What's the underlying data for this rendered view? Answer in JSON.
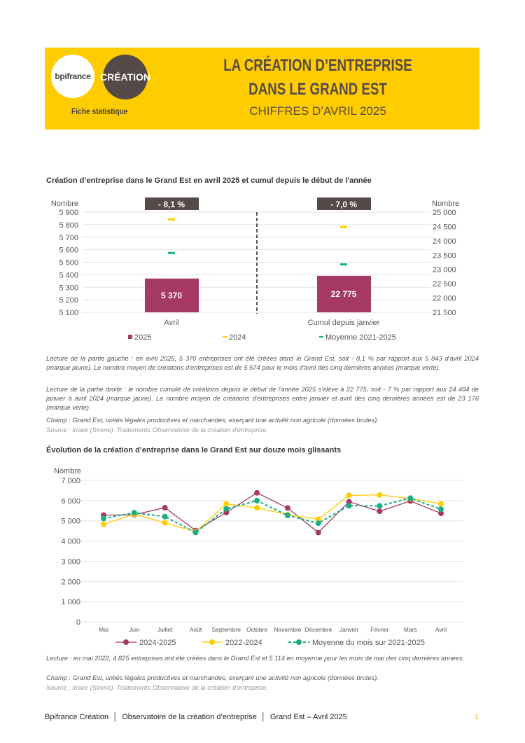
{
  "header": {
    "logo_bpi": "bpifrance",
    "logo_creation": "CRÉATION",
    "subtitle_left": "Fiche statistique",
    "title_line1": "LA CRÉATION D’ENTREPRISE",
    "title_line2": "DANS LE GRAND EST",
    "title_line3": "CHIFFRES D’AVRIL 2025",
    "brand_color": "#FFCC00"
  },
  "chart1_title": "Création d’entreprise dans le Grand Est en avril 2025 et cumul depuis le début de l'année",
  "chart1_notes": {
    "left": "Lecture de la partie gauche : en avril 2025, 5 370 entreprises ont été créées dans le Grand Est, soit - 8,1 % par rapport aux 5 843 d'avril 2024 (marque jaune). Le nombre moyen de créations d'entreprises est de 5 574 pour le mois d'avril des cinq dernières années (marque verte).",
    "right": "Lecture de la partie droite : le nombre cumulé de créations depuis le début de l'année 2025 s'élève à 22 775, soit - 7 % par rapport aux 24 484 de janvier à avril 2024 (marque jaune). Le nombre moyen de créations d'entreprises entre janvier et avril des cinq dernières années est de 23 176 (marque verte).",
    "champ": "Champ : Grand Est, unités légales productives et marchandes, exerçant une activité non agricole (données brutes).",
    "source": "Source : Insee (Sirene). Traitements Observatoire de la création d'entreprise."
  },
  "chart2_title": "Évolution de la création d’entreprise dans le Grand Est sur douze mois glissants",
  "chart2_notes": {
    "lecture": "Lecture : en mai 2022, 4 825 entreprises ont été créées dans le Grand Est et 5 114 en moyenne pour les mois de mai des cinq dernières années.",
    "champ": "Champ : Grand Est, unités légales productives et marchandes, exerçant une activité non agricole (données brutes).",
    "source": "Source : Insee (Sirene). Traitements Observatoire de la création d'entreprise."
  },
  "footer": {
    "text": "Bpifrance Création  │  Observatoire de la création d’entreprise  │  Grand Est – Avril 2025",
    "page": "1"
  },
  "chart_data": [
    {
      "type": "bar",
      "title": "Création d’entreprise dans le Grand Est en avril 2025 et cumul depuis le début de l'année",
      "categories": [
        "Avril",
        "Cumul depuis janvier"
      ],
      "ylabel_left": "Nombre",
      "ylabel_right": "Nombre",
      "ylim_left": [
        5100,
        5900
      ],
      "yticks_left": [
        "5 100",
        "5 200",
        "5 300",
        "5 400",
        "5 500",
        "5 600",
        "5 700",
        "5 800",
        "5 900"
      ],
      "ylim_right": [
        21500,
        25000
      ],
      "yticks_right": [
        "21 500",
        "22 000",
        "22 500",
        "23 000",
        "23 500",
        "24 000",
        "24 500",
        "25 000"
      ],
      "series": [
        {
          "name": "2025",
          "values": [
            5370,
            22775
          ],
          "labels": [
            "5 370",
            "22 775"
          ],
          "color": "#A63A64"
        },
        {
          "name": "2024",
          "values": [
            5843,
            24484
          ],
          "color": "#FFCC00"
        },
        {
          "name": "Moyenne 2021-2025",
          "values": [
            5574,
            23176
          ],
          "color": "#1AAE86"
        }
      ],
      "badges": [
        "- 8,1 %",
        "- 7,0 %"
      ],
      "legend_position": "bottom"
    },
    {
      "type": "line",
      "title": "Évolution de la création d’entreprise dans le Grand Est sur douze mois glissants",
      "ylabel": "Nombre",
      "ylim": [
        0,
        7000
      ],
      "yticks": [
        "0",
        "1 000",
        "2 000",
        "3 000",
        "4 000",
        "5 000",
        "6 000",
        "7 000"
      ],
      "categories": [
        "Mai",
        "Juin",
        "Juillet",
        "Août",
        "Septembre",
        "Octobre",
        "Novembre",
        "Décembre",
        "Janvier",
        "Février",
        "Mars",
        "Avril"
      ],
      "series": [
        {
          "name": "2024-2025",
          "color": "#A63A64",
          "dashed": false,
          "values": [
            5280,
            5300,
            5650,
            4520,
            5410,
            6385,
            5635,
            4420,
            5945,
            5470,
            5980,
            5370
          ]
        },
        {
          "name": "2022-2024",
          "color": "#FFCC00",
          "dashed": false,
          "values": [
            4825,
            5330,
            4900,
            4460,
            5840,
            5645,
            5300,
            5080,
            6260,
            6280,
            6100,
            5843
          ]
        },
        {
          "name": "Moyenne du mois sur 2021-2025",
          "color": "#1AAE86",
          "dashed": true,
          "values": [
            5114,
            5400,
            5210,
            4420,
            5590,
            6000,
            5270,
            4880,
            5750,
            5740,
            6120,
            5574
          ]
        }
      ],
      "grid": true,
      "legend_position": "bottom"
    }
  ]
}
